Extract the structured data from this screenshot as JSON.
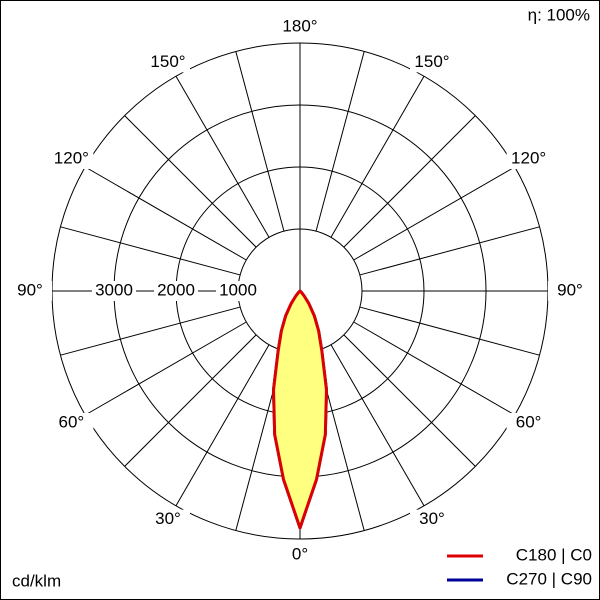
{
  "chart_data": {
    "type": "polar",
    "header": "η: 100%",
    "unit_label": "cd/klm",
    "rlim": [
      0,
      4000
    ],
    "rticks": [
      1000,
      2000,
      3000
    ],
    "aticks": [
      {
        "value": 0,
        "label": "0°"
      },
      {
        "value": 30,
        "label": "30°"
      },
      {
        "value": 60,
        "label": "60°"
      },
      {
        "value": 90,
        "label": "90°"
      },
      {
        "value": 120,
        "label": "120°"
      },
      {
        "value": 150,
        "label": "150°"
      },
      {
        "value": 180,
        "label": "180°"
      }
    ],
    "x": [
      -50,
      -45,
      -40,
      -35,
      -30,
      -25,
      -20,
      -15,
      -10,
      -5,
      0,
      5,
      10,
      15,
      20,
      25,
      30,
      35,
      40,
      45,
      50
    ],
    "series": [
      {
        "name": "C270 | C90",
        "color": "#000099",
        "values": [
          0,
          30,
          100,
          250,
          460,
          710,
          1030,
          1650,
          2350,
          3050,
          3820,
          3050,
          2350,
          1650,
          1030,
          710,
          460,
          250,
          100,
          30,
          0
        ]
      },
      {
        "name": "C180 | C0",
        "color": "#dd0000",
        "fill": "#ffff80",
        "values": [
          0,
          30,
          100,
          250,
          460,
          710,
          1030,
          1650,
          2350,
          3050,
          3820,
          3050,
          2350,
          1650,
          1030,
          710,
          460,
          250,
          100,
          30,
          0
        ]
      }
    ]
  }
}
